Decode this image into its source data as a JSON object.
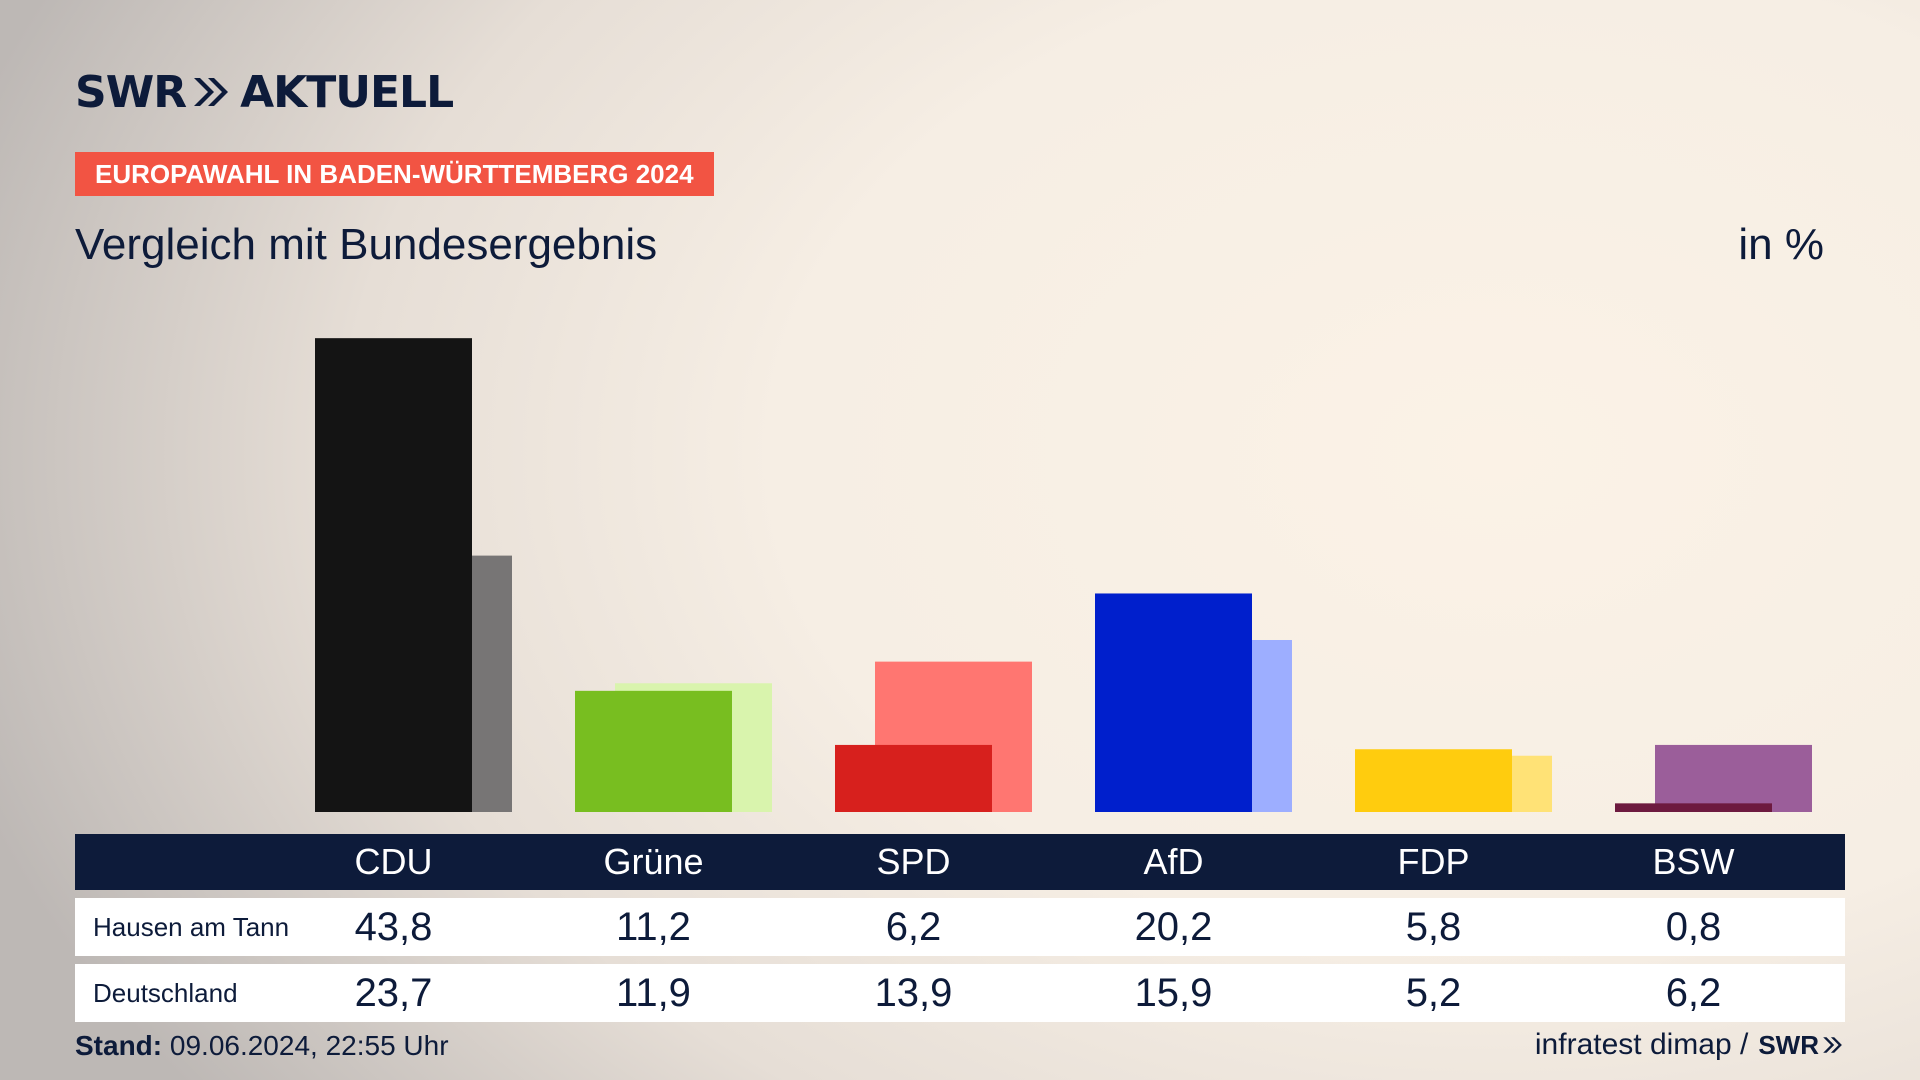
{
  "header": {
    "brand": "SWR",
    "brand_suffix": "AKTUELL",
    "badge": "EUROPAWAHL IN BADEN-WÜRTTEMBERG 2024",
    "subtitle": "Vergleich mit Bundesergebnis",
    "unit": "in %"
  },
  "colors": {
    "brand_navy": "#0d1b3a",
    "badge_red": "#f25443"
  },
  "chart_data": {
    "type": "bar",
    "categories": [
      "CDU",
      "Grüne",
      "SPD",
      "AfD",
      "FDP",
      "BSW"
    ],
    "series": [
      {
        "name": "Hausen am Tann",
        "values": [
          43.8,
          11.2,
          6.2,
          20.2,
          5.8,
          0.8
        ],
        "colors": [
          "#141414",
          "#78be20",
          "#d7201d",
          "#001fcc",
          "#ffcc0e",
          "#6d1a3f"
        ]
      },
      {
        "name": "Deutschland",
        "values": [
          23.7,
          11.9,
          13.9,
          15.9,
          5.2,
          6.2
        ],
        "colors": [
          "#777575",
          "#d9f4ad",
          "#ff7671",
          "#9daeff",
          "#ffe276",
          "#9b5e9a"
        ]
      }
    ],
    "ylim": [
      0,
      44
    ],
    "display_values": {
      "Hausen am Tann": [
        "43,8",
        "11,2",
        "6,2",
        "20,2",
        "5,8",
        "0,8"
      ],
      "Deutschland": [
        "23,7",
        "11,9",
        "13,9",
        "15,9",
        "5,2",
        "6,2"
      ]
    }
  },
  "footer": {
    "stand_label": "Stand:",
    "stand_value": " 09.06.2024, 22:55 Uhr",
    "source": "infratest dimap /",
    "source_brand": "SWR"
  }
}
